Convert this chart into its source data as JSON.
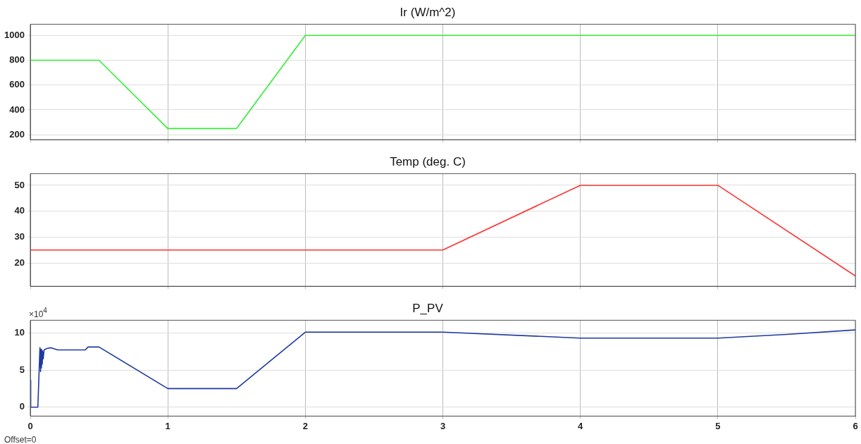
{
  "chart_data": [
    {
      "type": "line",
      "title": "Ir (W/m^2)",
      "x": [
        0,
        0.5,
        1,
        1.5,
        2,
        3,
        4,
        5,
        6
      ],
      "series": [
        {
          "color": "#33ee33",
          "values": [
            800,
            800,
            250,
            250,
            1000,
            1000,
            1000,
            1000,
            1000
          ]
        }
      ],
      "xlim": [
        0,
        6
      ],
      "xticks": [
        0,
        1,
        2,
        3,
        4,
        5,
        6
      ],
      "ylim": [
        160,
        1090
      ],
      "yticks": [
        200,
        400,
        600,
        800,
        1000
      ],
      "grid": true,
      "tick_labels": "y",
      "marker": "none",
      "line_style": "solid"
    },
    {
      "type": "line",
      "title": "Temp (deg. C)",
      "x": [
        0,
        1,
        2,
        3,
        4,
        5,
        6
      ],
      "series": [
        {
          "color": "#ff3333",
          "values": [
            25,
            25,
            25,
            25,
            50,
            50,
            15
          ]
        }
      ],
      "xlim": [
        0,
        6
      ],
      "xticks": [
        0,
        1,
        2,
        3,
        4,
        5,
        6
      ],
      "ylim": [
        11,
        54.5
      ],
      "yticks": [
        20,
        30,
        40,
        50
      ],
      "grid": true,
      "tick_labels": "y",
      "marker": "none",
      "line_style": "solid"
    },
    {
      "type": "line",
      "title": "P_PV",
      "x": [
        0,
        0.003,
        0.01,
        0.055,
        0.07,
        0.075,
        0.078,
        0.081,
        0.084,
        0.087,
        0.09,
        0.094,
        0.1,
        0.12,
        0.15,
        0.2,
        0.4,
        0.42,
        0.5,
        1,
        1.5,
        2,
        3,
        4,
        5,
        5.5,
        6
      ],
      "series": [
        {
          "color": "#1f3a9e",
          "values": [
            3.6,
            0,
            0,
            0,
            8,
            4.8,
            7.8,
            5.3,
            7.6,
            5.8,
            7.5,
            6.5,
            7.7,
            7.9,
            8,
            7.7,
            7.7,
            8.1,
            8.1,
            2.5,
            2.5,
            10.1,
            10.1,
            9.3,
            9.3,
            9.8,
            10.4
          ]
        }
      ],
      "xlim": [
        0,
        6
      ],
      "xticks": [
        0,
        1,
        2,
        3,
        4,
        5,
        6
      ],
      "ylim": [
        -1.2,
        11.7
      ],
      "yticks": [
        0,
        5,
        10
      ],
      "grid": true,
      "marker": "none",
      "line_style": "solid",
      "annotations": [
        "×10$^{4}$",
        "Offset=0"
      ]
    }
  ]
}
